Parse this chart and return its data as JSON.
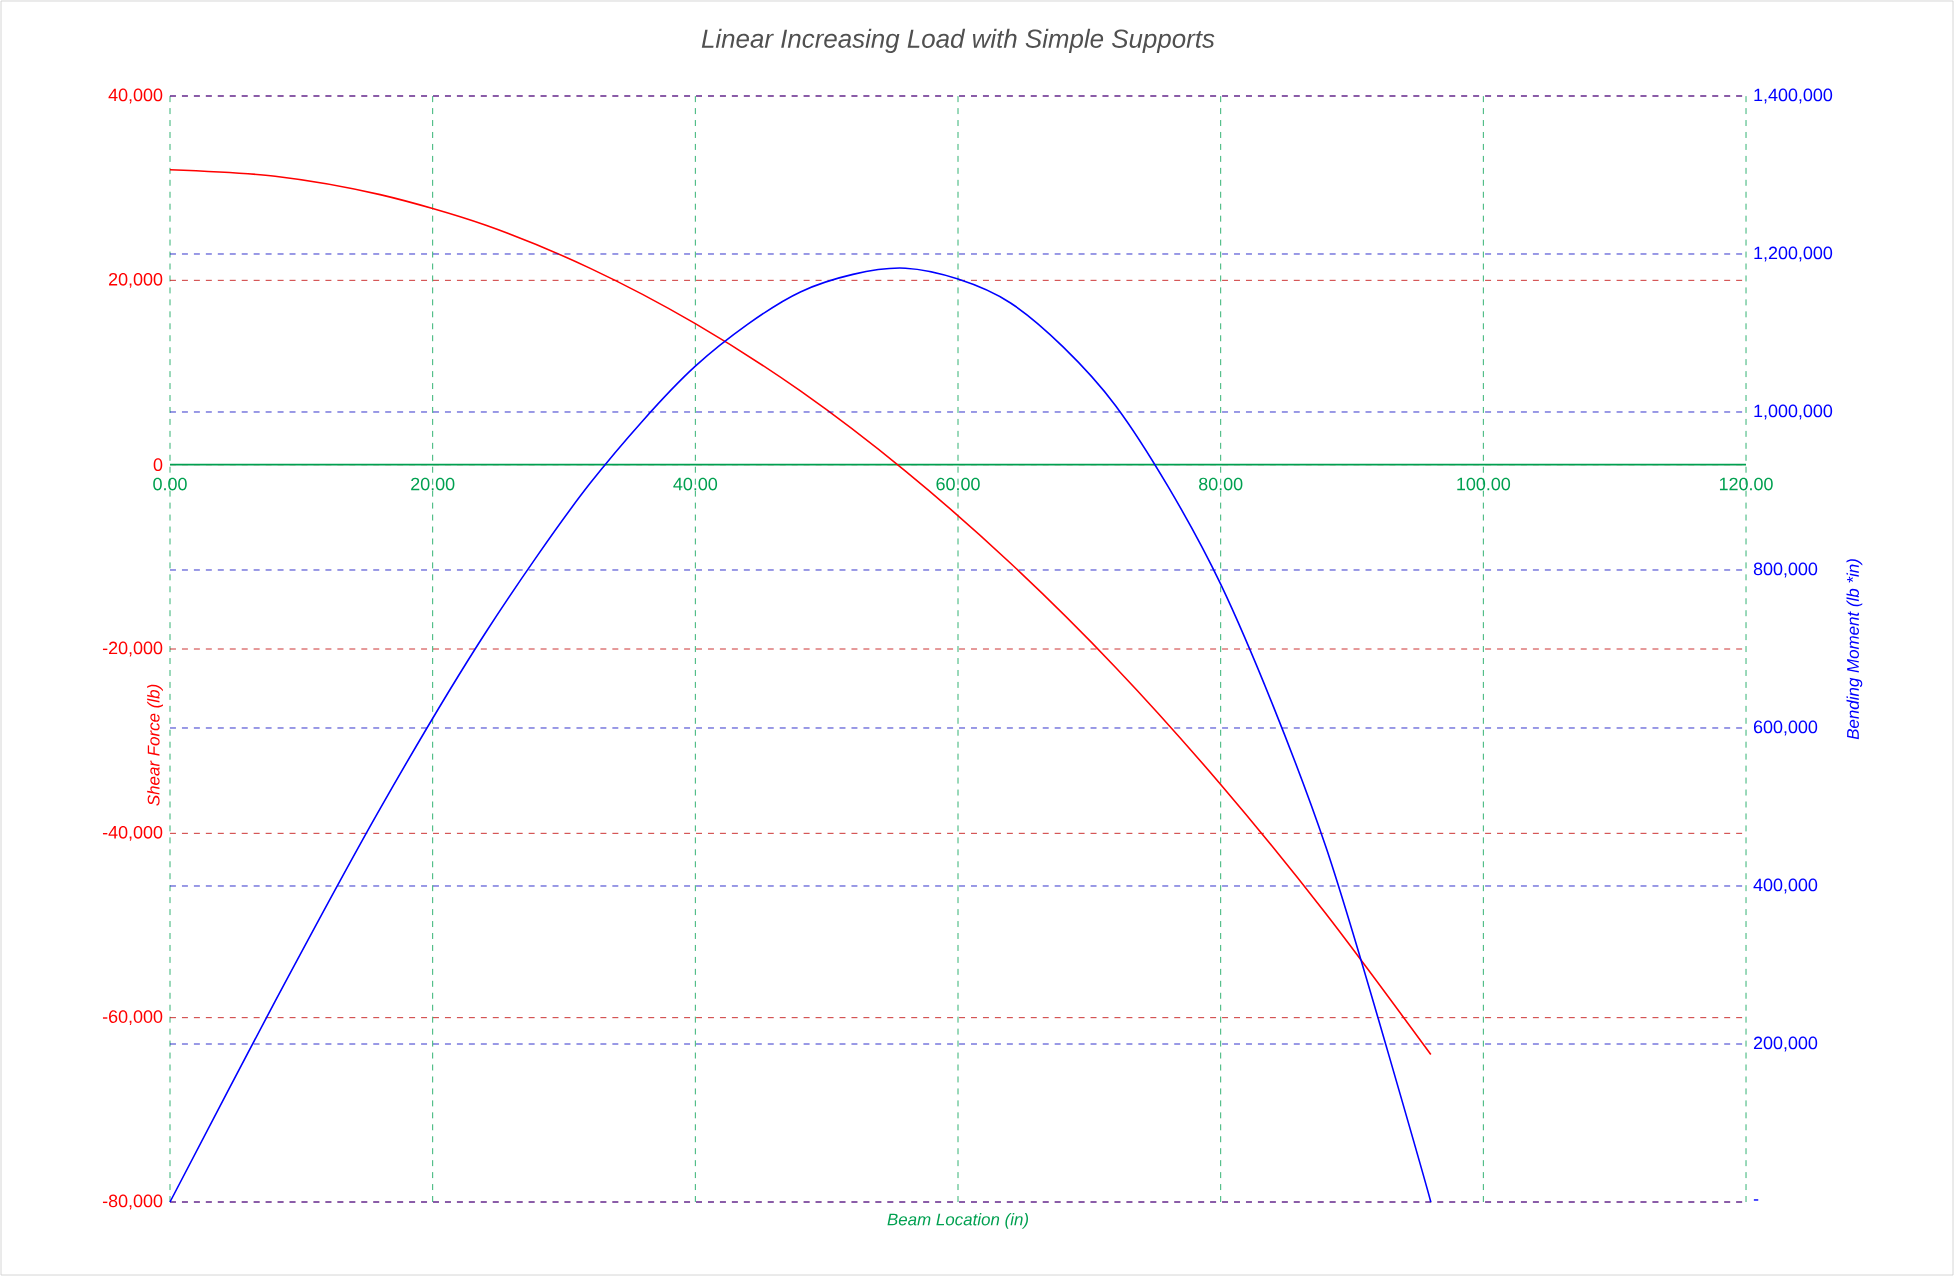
{
  "chart_data": {
    "type": "line",
    "title": "Linear Increasing Load with Simple Supports",
    "xlabel": "Beam Location (in)",
    "ylabel": "Shear Force (lb)",
    "y2label": "Bending Moment (lb *in)",
    "x": [
      0,
      8,
      16,
      24,
      32,
      40,
      48,
      56,
      64,
      72,
      80,
      88,
      96
    ],
    "series": [
      {
        "color": "#ff0000",
        "values": [
          32000,
          31300,
          29300,
          26000,
          21300,
          15300,
          8000,
          -700,
          -10700,
          -22000,
          -34700,
          -48700,
          -64000
        ]
      },
      {
        "color": "#0000ff",
        "axis": "y2",
        "values": [
          0,
          254000,
          498000,
          720000,
          910000,
          1058000,
          1152000,
          1182000,
          1138000,
          1008000,
          782000,
          450000,
          0
        ]
      }
    ],
    "xlim": [
      0,
      120
    ],
    "xticks": [
      {
        "value": 0,
        "label": "0.00"
      },
      {
        "value": 20,
        "label": "20.00"
      },
      {
        "value": 40,
        "label": "40.00"
      },
      {
        "value": 60,
        "label": "60.00"
      },
      {
        "value": 80,
        "label": "80.00"
      },
      {
        "value": 100,
        "label": "100.00"
      },
      {
        "value": 120,
        "label": "120.00"
      }
    ],
    "ylim": [
      -80000,
      40000
    ],
    "yticks": [
      {
        "value": -80000,
        "label": "-80,000"
      },
      {
        "value": -60000,
        "label": "-60,000"
      },
      {
        "value": -40000,
        "label": "-40,000"
      },
      {
        "value": -20000,
        "label": "-20,000"
      },
      0,
      {
        "value": 20000,
        "label": "20,000"
      },
      {
        "value": 40000,
        "label": "40,000"
      }
    ],
    "y2lim": [
      0,
      1400000
    ],
    "y2ticks": [
      {
        "value": 0,
        "label": "-"
      },
      {
        "value": 200000,
        "label": "200,000"
      },
      {
        "value": 400000,
        "label": "400,000"
      },
      {
        "value": 600000,
        "label": "600,000"
      },
      {
        "value": 800000,
        "label": "800,000"
      },
      {
        "value": 1000000,
        "label": "1,000,000"
      },
      {
        "value": 1200000,
        "label": "1,200,000"
      },
      {
        "value": 1400000,
        "label": "1,400,000"
      }
    ],
    "grid": true,
    "marker": "none",
    "line_style": "solid"
  }
}
